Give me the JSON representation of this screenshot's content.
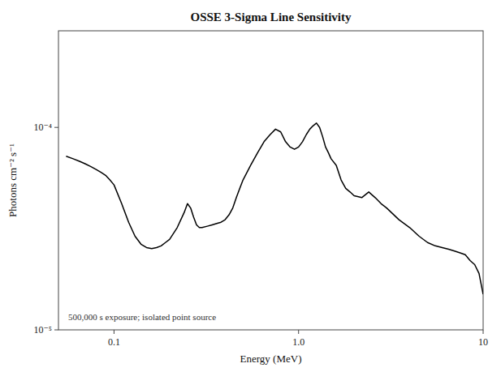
{
  "chart_data": {
    "type": "line",
    "title": "OSSE 3-Sigma Line Sensitivity",
    "x_label": "Energy (MeV)",
    "y_label": "Photons cm⁻² s⁻¹",
    "annotation": "500,000 s exposure; isolated point source",
    "log": true,
    "grid": false,
    "color": "#000000",
    "xlim": [
      0.05,
      10
    ],
    "ylim": [
      1e-05,
      0.0003
    ],
    "xticks": [
      0.1,
      {
        "value": 1,
        "label": "1.0"
      },
      10
    ],
    "yticks": [
      {
        "value": 1e-05,
        "label": "10⁻⁵"
      },
      {
        "value": 0.0001,
        "label": "10⁻⁴"
      }
    ],
    "x": [
      0.055,
      0.06,
      0.065,
      0.07,
      0.075,
      0.08,
      0.085,
      0.09,
      0.095,
      0.1,
      0.11,
      0.12,
      0.13,
      0.14,
      0.15,
      0.16,
      0.17,
      0.18,
      0.19,
      0.2,
      0.22,
      0.24,
      0.25,
      0.26,
      0.27,
      0.28,
      0.29,
      0.3,
      0.32,
      0.34,
      0.36,
      0.38,
      0.4,
      0.42,
      0.44,
      0.46,
      0.48,
      0.5,
      0.55,
      0.6,
      0.65,
      0.7,
      0.75,
      0.8,
      0.85,
      0.9,
      0.95,
      1.0,
      1.05,
      1.1,
      1.15,
      1.2,
      1.25,
      1.3,
      1.35,
      1.4,
      1.45,
      1.5,
      1.6,
      1.7,
      1.8,
      1.9,
      2.0,
      2.2,
      2.4,
      2.6,
      2.8,
      3.0,
      3.5,
      4.0,
      4.5,
      5.0,
      5.5,
      6.0,
      6.5,
      7.0,
      7.5,
      8.0,
      8.5,
      9.0,
      9.5,
      10.0
    ],
    "values": [
      7.2e-05,
      7e-05,
      6.8e-05,
      6.6e-05,
      6.4e-05,
      6.2e-05,
      6e-05,
      5.8e-05,
      5.5e-05,
      5.2e-05,
      4.2e-05,
      3.4e-05,
      2.9e-05,
      2.65e-05,
      2.55e-05,
      2.52e-05,
      2.55e-05,
      2.6e-05,
      2.7e-05,
      2.8e-05,
      3.2e-05,
      3.8e-05,
      4.2e-05,
      4e-05,
      3.6e-05,
      3.3e-05,
      3.2e-05,
      3.2e-05,
      3.25e-05,
      3.3e-05,
      3.35e-05,
      3.4e-05,
      3.5e-05,
      3.7e-05,
      4e-05,
      4.5e-05,
      5e-05,
      5.5e-05,
      6.5e-05,
      7.5e-05,
      8.5e-05,
      9.2e-05,
      9.8e-05,
      9.5e-05,
      8.5e-05,
      8e-05,
      7.8e-05,
      8e-05,
      8.5e-05,
      9.2e-05,
      9.8e-05,
      0.000102,
      0.000105,
      0.0001,
      9e-05,
      8e-05,
      7.5e-05,
      7e-05,
      6.5e-05,
      5.5e-05,
      5e-05,
      4.8e-05,
      4.6e-05,
      4.5e-05,
      4.8e-05,
      4.5e-05,
      4.2e-05,
      4e-05,
      3.5e-05,
      3.2e-05,
      2.9e-05,
      2.7e-05,
      2.6e-05,
      2.55e-05,
      2.5e-05,
      2.45e-05,
      2.4e-05,
      2.35e-05,
      2.2e-05,
      2.1e-05,
      1.9e-05,
      1.5e-05
    ]
  }
}
